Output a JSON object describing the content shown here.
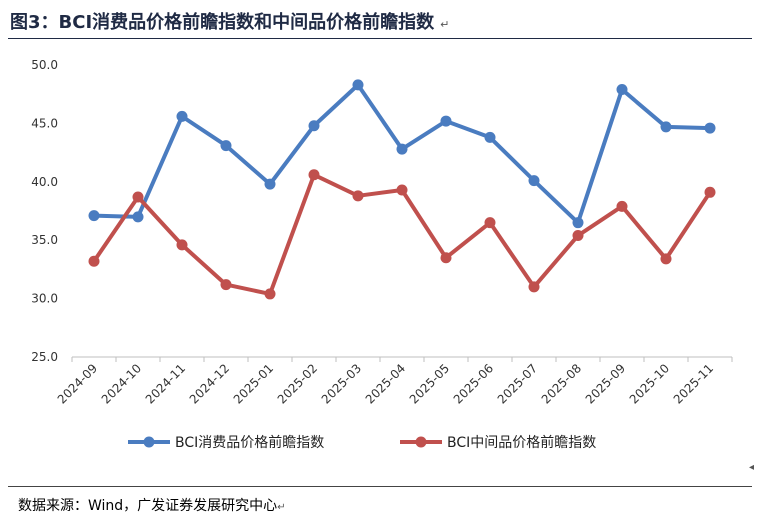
{
  "title": "图3：BCI消费品价格前瞻指数和中间品价格前瞻指数",
  "title_mark": "↵",
  "source": "数据来源：Wind，广发证券发展研究中心",
  "source_mark": "↵",
  "side_mark": "◂",
  "chart_data": {
    "type": "line",
    "title": "",
    "xlabel": "",
    "ylabel": "",
    "ylim": [
      25.0,
      50.0
    ],
    "yticks": [
      "25.0",
      "30.0",
      "35.0",
      "40.0",
      "45.0",
      "50.0"
    ],
    "grid": false,
    "legend": "bottom",
    "categories": [
      "2024-09",
      "2024-10",
      "2024-11",
      "2024-12",
      "2025-01",
      "2025-02",
      "2025-03",
      "2025-04",
      "2025-05",
      "2025-06",
      "2025-07",
      "2025-08",
      "2025-09",
      "2025-10",
      "2025-11"
    ],
    "series": [
      {
        "name": "BCI消费品价格前瞻指数",
        "color": "#4a7cc0",
        "values": [
          37.1,
          37.0,
          45.6,
          43.1,
          39.8,
          44.8,
          48.3,
          42.8,
          45.2,
          43.8,
          40.1,
          36.5,
          47.9,
          44.7,
          44.6
        ]
      },
      {
        "name": "BCI中间品价格前瞻指数",
        "color": "#c0504d",
        "values": [
          33.2,
          38.7,
          34.6,
          31.2,
          30.4,
          40.6,
          38.8,
          39.3,
          33.5,
          36.5,
          31.0,
          35.4,
          37.9,
          33.4,
          39.1
        ]
      }
    ]
  }
}
